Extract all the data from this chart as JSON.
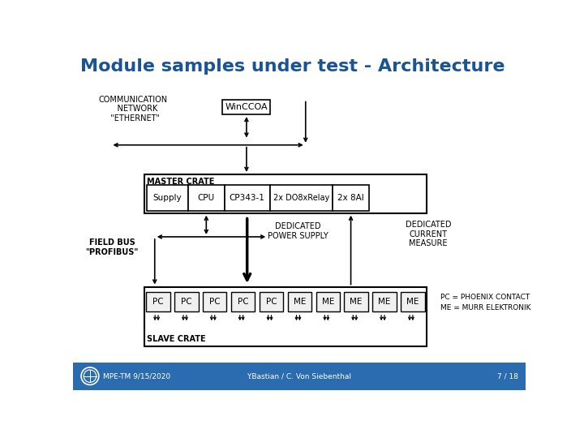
{
  "title": "Module samples under test - Architecture",
  "title_color": "#1A5494",
  "title_fontsize": 16,
  "bg_color": "#FFFFFF",
  "footer_bg_color": "#2B6CB0",
  "footer_text_color": "#FFFFFF",
  "footer_left": "MPE-TM 9/15/2020",
  "footer_center": "Y.Bastian / C. Von Siebenthal",
  "footer_right": "7 / 18",
  "legend_text": "PC = PHOENIX CONTACT\nME = MURR ELEKTRONIK",
  "comm_label": "COMMUNICATION\n    NETWORK\n  \"ETHERNET\"",
  "winccoa_label": "WinCCOA",
  "master_crate_label": "MASTER CRATE",
  "supply_label": "Supply",
  "cpu_label": "CPU",
  "cp343_label": "CP343-1",
  "do8_label": "2x DO8xRelay",
  "ai_label": "2x 8AI",
  "fieldbus_label": "FIELD BUS\n\"PROFIBUS\"",
  "ded_power_label": "DEDICATED\nPOWER SUPPLY",
  "ded_current_label": "DEDICATED\nCURRENT\nMEASURE",
  "slave_crate_label": "SLAVE CRATE",
  "pc_modules": [
    "PC",
    "PC",
    "PC",
    "PC",
    "PC"
  ],
  "me_modules": [
    "ME",
    "ME",
    "ME",
    "ME",
    "ME"
  ]
}
